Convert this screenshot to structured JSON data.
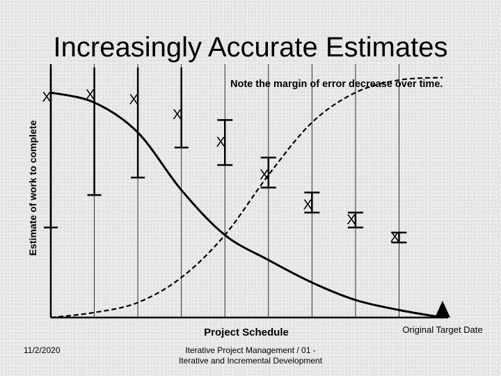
{
  "title": "Increasingly Accurate Estimates",
  "footer": {
    "date": "11/2/2020",
    "center": "Iterative Project Management / 01 - Iterative and Incremental Development"
  },
  "chart_data": {
    "type": "line",
    "ylabel": "Estimate of work to complete",
    "xlabel": "Project Schedule",
    "annotation": "Note the margin of error decrease over time.",
    "target_label": "Original Target Date",
    "marker_glyph": "X",
    "grid": true,
    "colors": {
      "line": "#000000",
      "grid": "#000000"
    },
    "xlim": [
      0,
      9
    ],
    "ylim": [
      0,
      100
    ],
    "checkpoints": [
      {
        "x": 0,
        "estimate": 88,
        "low": 36,
        "high": 100
      },
      {
        "x": 1,
        "estimate": 89,
        "low": 49,
        "high": 100
      },
      {
        "x": 2,
        "estimate": 87,
        "low": 56,
        "high": 100
      },
      {
        "x": 3,
        "estimate": 81,
        "low": 68,
        "high": 100
      },
      {
        "x": 4,
        "estimate": 70,
        "low": 61,
        "high": 79
      },
      {
        "x": 5,
        "estimate": 57,
        "low": 52,
        "high": 64
      },
      {
        "x": 6,
        "estimate": 45,
        "low": 42,
        "high": 50
      },
      {
        "x": 7,
        "estimate": 39,
        "low": 36,
        "high": 42
      },
      {
        "x": 8,
        "estimate": 32,
        "low": 30,
        "high": 34
      }
    ],
    "series": [
      {
        "style": "solid",
        "x": [
          0,
          1,
          2,
          3,
          4,
          5,
          6,
          7,
          8,
          9
        ],
        "values": [
          90,
          86,
          74,
          51,
          33,
          23,
          14,
          7,
          3,
          0
        ]
      },
      {
        "style": "dashed",
        "x": [
          0,
          1,
          2,
          3,
          4,
          5,
          6,
          7,
          8,
          9
        ],
        "values": [
          0,
          2,
          6,
          16,
          33,
          57,
          78,
          90,
          95,
          96
        ]
      }
    ]
  }
}
